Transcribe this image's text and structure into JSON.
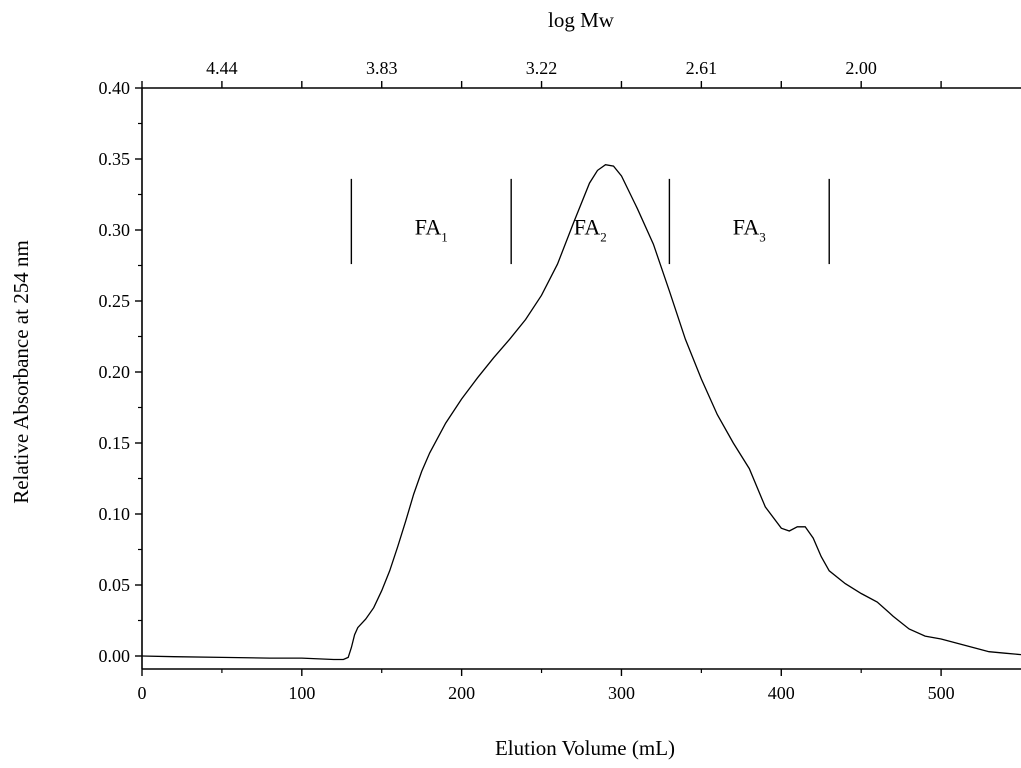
{
  "chart_data": {
    "type": "line",
    "xlabel": "Elution Volume (mL)",
    "ylabel": "Relative Absorbance at 254 nm",
    "top_axis_label": "log Mw",
    "xlim": [
      0,
      550
    ],
    "ylim": [
      -0.01,
      0.4
    ],
    "x_ticks": [
      0,
      100,
      200,
      300,
      400,
      500
    ],
    "x_tick_labels": [
      "0",
      "100",
      "200",
      "300",
      "400",
      "500"
    ],
    "y_ticks": [
      0.0,
      0.05,
      0.1,
      0.15,
      0.2,
      0.25,
      0.3,
      0.35,
      0.4
    ],
    "y_tick_labels": [
      "0.00",
      "0.05",
      "0.10",
      "0.15",
      "0.20",
      "0.25",
      "0.30",
      "0.35",
      "0.40"
    ],
    "top_ticks": [
      {
        "x": 50,
        "label": "4.44"
      },
      {
        "x": 150,
        "label": "3.83"
      },
      {
        "x": 250,
        "label": "3.22"
      },
      {
        "x": 350,
        "label": "2.61"
      },
      {
        "x": 450,
        "label": "2.00"
      }
    ],
    "fractions": [
      {
        "name": "FA",
        "sub": "1",
        "from": 131,
        "to": 231
      },
      {
        "name": "FA",
        "sub": "2",
        "from": 231,
        "to": 330
      },
      {
        "name": "FA",
        "sub": "3",
        "from": 330,
        "to": 430
      }
    ],
    "fraction_bar_y": [
      0.276,
      0.336
    ],
    "series": [
      {
        "values": [
          [
            0,
            0.0
          ],
          [
            20,
            -0.0005
          ],
          [
            50,
            -0.001
          ],
          [
            80,
            -0.0015
          ],
          [
            100,
            -0.0015
          ],
          [
            120,
            -0.0025
          ],
          [
            126,
            -0.0025
          ],
          [
            129,
            -0.001
          ],
          [
            131,
            0.006
          ],
          [
            133,
            0.015
          ],
          [
            135,
            0.02
          ],
          [
            140,
            0.026
          ],
          [
            145,
            0.034
          ],
          [
            150,
            0.046
          ],
          [
            155,
            0.06
          ],
          [
            160,
            0.077
          ],
          [
            165,
            0.095
          ],
          [
            170,
            0.114
          ],
          [
            175,
            0.13
          ],
          [
            180,
            0.143
          ],
          [
            190,
            0.164
          ],
          [
            200,
            0.181
          ],
          [
            210,
            0.196
          ],
          [
            220,
            0.21
          ],
          [
            230,
            0.223
          ],
          [
            240,
            0.237
          ],
          [
            250,
            0.254
          ],
          [
            260,
            0.276
          ],
          [
            270,
            0.305
          ],
          [
            280,
            0.333
          ],
          [
            285,
            0.342
          ],
          [
            290,
            0.346
          ],
          [
            295,
            0.345
          ],
          [
            300,
            0.338
          ],
          [
            310,
            0.315
          ],
          [
            320,
            0.29
          ],
          [
            330,
            0.257
          ],
          [
            340,
            0.223
          ],
          [
            350,
            0.195
          ],
          [
            360,
            0.17
          ],
          [
            370,
            0.15
          ],
          [
            380,
            0.132
          ],
          [
            390,
            0.105
          ],
          [
            400,
            0.09
          ],
          [
            405,
            0.088
          ],
          [
            410,
            0.091
          ],
          [
            415,
            0.091
          ],
          [
            420,
            0.083
          ],
          [
            425,
            0.07
          ],
          [
            430,
            0.06
          ],
          [
            440,
            0.051
          ],
          [
            450,
            0.044
          ],
          [
            460,
            0.038
          ],
          [
            470,
            0.028
          ],
          [
            480,
            0.019
          ],
          [
            490,
            0.014
          ],
          [
            500,
            0.012
          ],
          [
            510,
            0.009
          ],
          [
            520,
            0.006
          ],
          [
            530,
            0.003
          ],
          [
            540,
            0.002
          ],
          [
            550,
            0.001
          ]
        ]
      }
    ]
  }
}
